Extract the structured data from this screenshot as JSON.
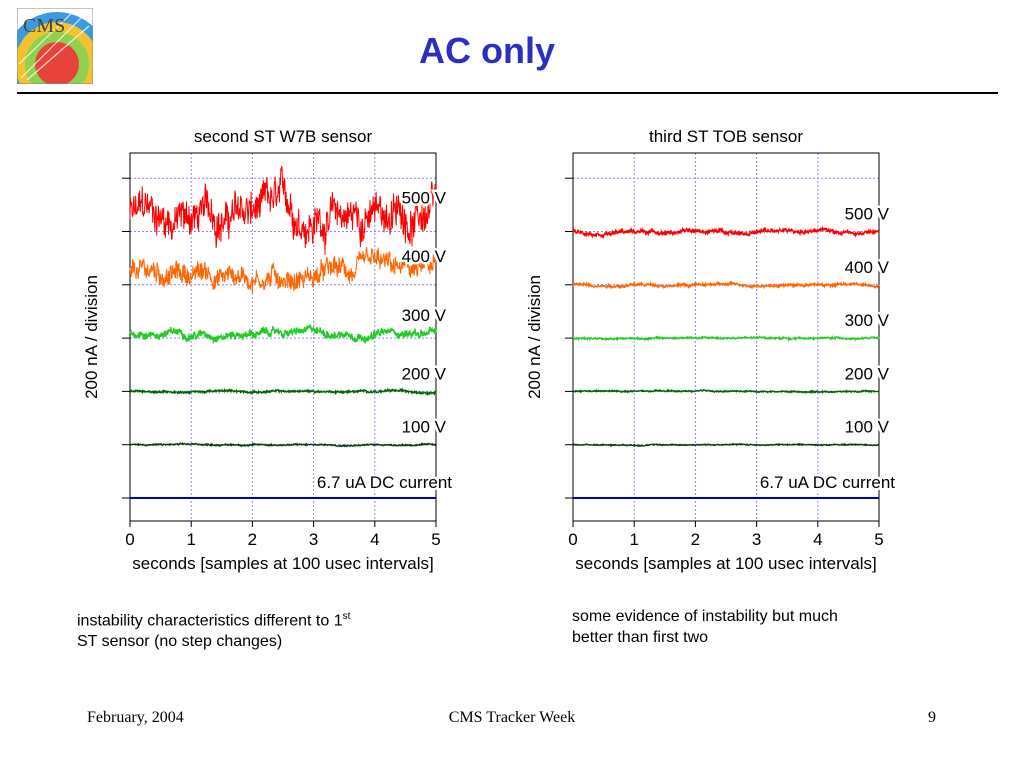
{
  "slide": {
    "title": "AC only",
    "logo_text": "CMS",
    "caption_left": {
      "line1": "instability characteristics different to 1",
      "sup": "st",
      "line2": "ST sensor (no step changes)"
    },
    "caption_right": {
      "line1": "some evidence of instability but much",
      "line2": "better than first two"
    },
    "footer": {
      "date": "February, 2004",
      "event": "CMS Tracker Week",
      "page": "9"
    }
  },
  "colors": {
    "title": "#2a2fc4",
    "500V": "#ff0000",
    "400V": "#ff6600",
    "300V": "#22cc22",
    "200V": "#006400",
    "100V": "#0b3d0b",
    "dc": "#0000cc",
    "grid": "#8888ff"
  },
  "chart_data": [
    {
      "type": "line",
      "title": "second ST W7B sensor",
      "xlabel": "seconds [samples at 100 usec intervals]",
      "ylabel": "200 nA / division",
      "xlim": [
        0,
        5
      ],
      "x_ticks": [
        0,
        1,
        2,
        3,
        4,
        5
      ],
      "grid": true,
      "series": [
        {
          "name": "500 V",
          "division": 5.3,
          "noise": 0.55
        },
        {
          "name": "400 V",
          "division": 4.2,
          "noise": 0.32
        },
        {
          "name": "300 V",
          "division": 3.1,
          "noise": 0.12
        },
        {
          "name": "200 V",
          "division": 2.0,
          "noise": 0.03
        },
        {
          "name": "100 V",
          "division": 1.0,
          "noise": 0.02
        },
        {
          "name": "6.7 uA DC current",
          "division": 0.0,
          "noise": 0.0
        }
      ]
    },
    {
      "type": "line",
      "title": "third ST TOB sensor",
      "xlabel": "seconds [samples at 100 usec intervals]",
      "ylabel": "200 nA / division",
      "xlim": [
        0,
        5
      ],
      "x_ticks": [
        0,
        1,
        2,
        3,
        4,
        5
      ],
      "grid": true,
      "series": [
        {
          "name": "500 V",
          "division": 5.0,
          "noise": 0.06
        },
        {
          "name": "400 V",
          "division": 4.0,
          "noise": 0.04
        },
        {
          "name": "300 V",
          "division": 3.0,
          "noise": 0.025
        },
        {
          "name": "200 V",
          "division": 2.0,
          "noise": 0.02
        },
        {
          "name": "100 V",
          "division": 1.0,
          "noise": 0.015
        },
        {
          "name": "6.7 uA DC current",
          "division": 0.0,
          "noise": 0.0
        }
      ]
    }
  ]
}
